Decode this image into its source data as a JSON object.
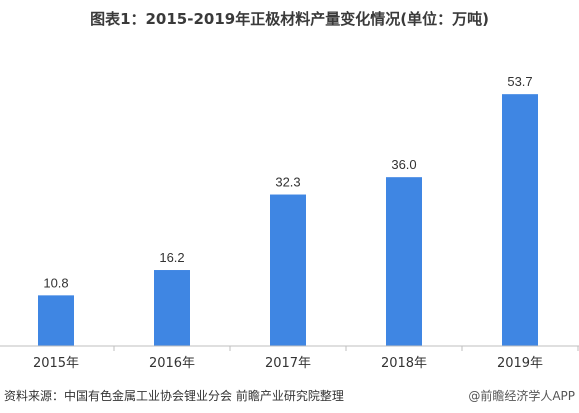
{
  "chart_data": {
    "type": "bar",
    "title": "图表1：2015-2019年正极材料产量变化情况(单位：万吨)",
    "categories": [
      "2015年",
      "2016年",
      "2017年",
      "2018年",
      "2019年"
    ],
    "values": [
      10.8,
      16.2,
      32.3,
      36.0,
      53.7
    ],
    "value_labels": [
      "10.8",
      "16.2",
      "32.3",
      "36.0",
      "53.7"
    ],
    "xlabel": "",
    "ylabel": "",
    "ylim": [
      0,
      60
    ],
    "grid": false,
    "legend": "none",
    "bar_color": "#3f86e3"
  },
  "footer": {
    "source": "资料来源：中国有色金属工业协会锂业分会 前瞻产业研究院整理",
    "brand": "@前瞻经济学人APP"
  }
}
